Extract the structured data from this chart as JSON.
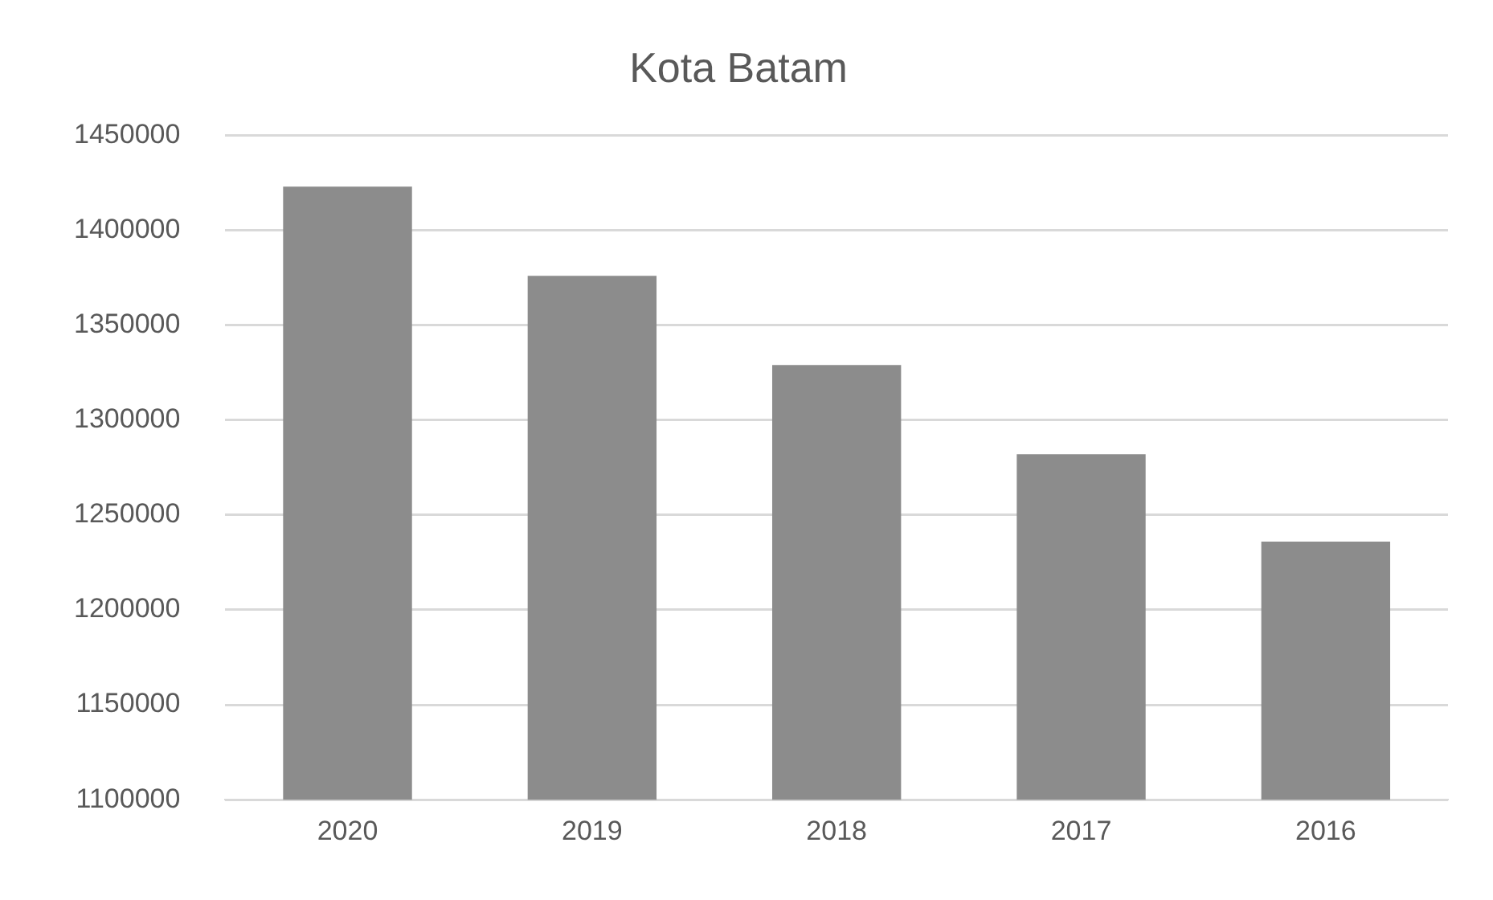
{
  "chart_data": {
    "type": "bar",
    "title": "Kota Batam",
    "categories": [
      "2020",
      "2019",
      "2018",
      "2017",
      "2016"
    ],
    "values": [
      1423000,
      1376000,
      1329000,
      1282000,
      1236000
    ],
    "color": "#8c8c8c",
    "ylim": [
      1100000,
      1450000
    ],
    "yticks": [
      1100000,
      1150000,
      1200000,
      1250000,
      1300000,
      1350000,
      1400000,
      1450000
    ],
    "grid": "y",
    "legend": false
  }
}
